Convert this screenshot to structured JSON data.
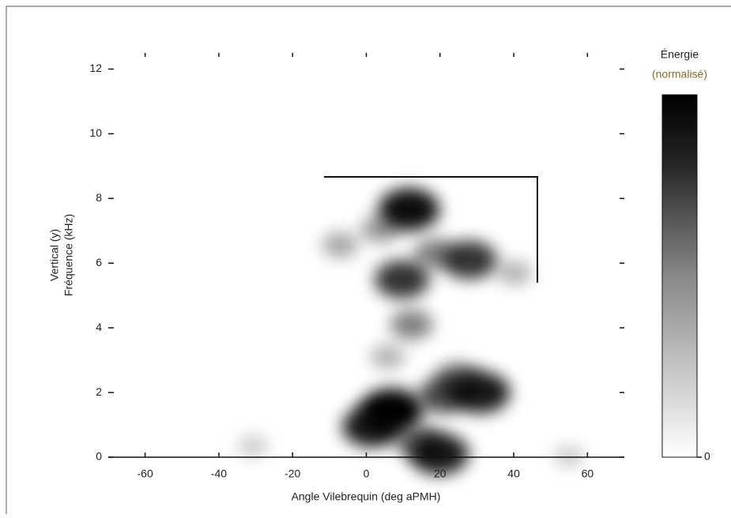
{
  "chart_data": {
    "type": "heatmap",
    "xlabel": "Angle Vilebrequin (deg aPMH)",
    "ylabel": [
      "Vertical (y)",
      "Fréquence (kHz)"
    ],
    "xlim": [
      -70,
      70
    ],
    "xticks": [
      -60,
      -40,
      -20,
      0,
      20,
      40,
      60
    ],
    "ylim": [
      0,
      12.5
    ],
    "yticks": [
      0,
      2,
      4,
      6,
      8,
      10,
      12
    ],
    "colorbar": {
      "title": [
        "Énergie",
        "(normalisé)"
      ],
      "clim": [
        0,
        1
      ],
      "ticks": [
        0
      ]
    },
    "spots": {
      "x": [
        11.6,
        28,
        9.7,
        12.3,
        6.9,
        1.5,
        31,
        20.9,
        25,
        14.4,
        19.8,
        -7.1,
        40.2,
        5.8,
        -30.8,
        55,
        18.7,
        3.7
      ],
      "y": [
        7.66,
        6.1,
        5.5,
        4.1,
        1.44,
        0.95,
        2.0,
        1.9,
        2.4,
        0.46,
        0.1,
        6.56,
        5.7,
        3.1,
        0.34,
        0.02,
        6.3,
        7.05
      ],
      "energy": [
        0.95,
        0.8,
        0.8,
        0.5,
        1.0,
        0.9,
        0.9,
        0.7,
        0.6,
        0.6,
        0.9,
        0.35,
        0.3,
        0.3,
        0.2,
        0.2,
        0.5,
        0.4
      ]
    }
  }
}
